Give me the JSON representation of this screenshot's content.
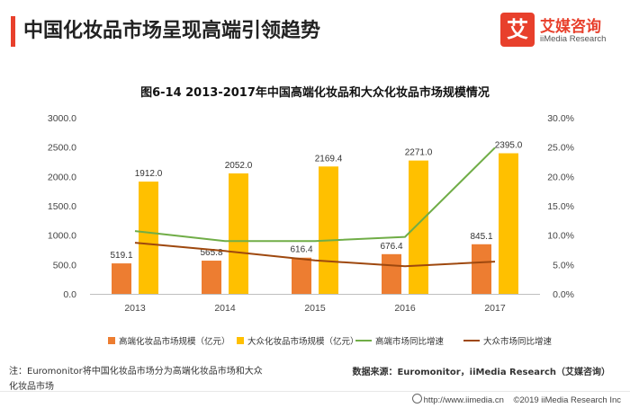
{
  "header": {
    "title": "中国化妆品市场呈现高端引领趋势",
    "logo_mark": "艾",
    "logo_name": "艾媒咨询",
    "logo_sub": "iiMedia Research"
  },
  "chart_data": {
    "type": "bar",
    "title": "图6-14 2013-2017年中国高端化妆品和大众化妆品市场规模情况",
    "categories": [
      "2013",
      "2014",
      "2015",
      "2016",
      "2017"
    ],
    "series": [
      {
        "name": "高端化妆品市场规模（亿元）",
        "kind": "bar",
        "axis": "left",
        "color": "#ed7d31",
        "values": [
          519.1,
          565.8,
          616.4,
          676.4,
          845.1
        ],
        "labels": [
          "519.1",
          "565.8",
          "616.4",
          "676.4",
          "845.1"
        ]
      },
      {
        "name": "大众化妆品市场规模（亿元）",
        "kind": "bar",
        "axis": "left",
        "color": "#ffc000",
        "values": [
          1912.0,
          2052.0,
          2169.4,
          2271.0,
          2395.0
        ],
        "labels": [
          "1912.0",
          "2052.0",
          "2169.4",
          "2271.0",
          "2395.0"
        ]
      },
      {
        "name": "高端市场同比增速",
        "kind": "line",
        "axis": "right",
        "color": "#70ad47",
        "values": [
          10.7,
          9.0,
          9.0,
          9.7,
          24.9
        ]
      },
      {
        "name": "大众市场同比增速",
        "kind": "line",
        "axis": "right",
        "color": "#9e480e",
        "values": [
          8.7,
          7.3,
          5.7,
          4.7,
          5.5
        ]
      }
    ],
    "y_left": {
      "min": 0,
      "max": 3000,
      "step": 500,
      "ticks": [
        "0.0",
        "500.0",
        "1000.0",
        "1500.0",
        "2000.0",
        "2500.0",
        "3000.0"
      ]
    },
    "y_right": {
      "min": 0,
      "max": 30,
      "step": 5,
      "ticks": [
        "0.0%",
        "5.0%",
        "10.0%",
        "15.0%",
        "20.0%",
        "25.0%",
        "30.0%"
      ]
    },
    "grid": false,
    "legend_position": "bottom"
  },
  "note": "注：Euromonitor将中国化妆品市场分为高端化妆品市场和大众化妆品市场",
  "source": "数据来源：Euromonitor，iiMedia Research（艾媒咨询）",
  "footer": {
    "url": "http://www.iimedia.cn",
    "copyright": "©2019  iiMedia Research  Inc"
  }
}
